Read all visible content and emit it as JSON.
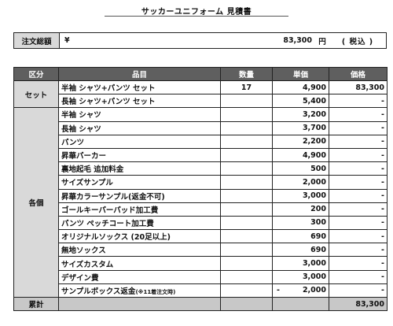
{
  "title": "サッカーユニフォーム 見積書",
  "total": {
    "label": "注文総額",
    "yen": "¥",
    "value": "83,300",
    "unit": "円",
    "tax": "( 税込 )"
  },
  "table": {
    "headers": [
      "区分",
      "品目",
      "数量",
      "単価",
      "価格"
    ],
    "groups": [
      {
        "category": "セット",
        "rows": [
          {
            "name": "半袖 シャツ+パンツ セット",
            "qty": "17",
            "unit_price": "4,900",
            "price": "83,300"
          },
          {
            "name": "長袖 シャツ+パンツ セット",
            "qty": "",
            "unit_price": "5,400",
            "price": "-"
          }
        ]
      },
      {
        "category": "各個",
        "rows": [
          {
            "name": "半袖 シャツ",
            "qty": "",
            "unit_price": "3,200",
            "price": "-"
          },
          {
            "name": "長袖 シャツ",
            "qty": "",
            "unit_price": "3,700",
            "price": "-"
          },
          {
            "name": "パンツ",
            "qty": "",
            "unit_price": "2,200",
            "price": "-"
          },
          {
            "name": "昇華パーカー",
            "qty": "",
            "unit_price": "4,900",
            "price": "-"
          },
          {
            "name": "裏地起毛 追加料金",
            "qty": "",
            "unit_price": "500",
            "price": "-"
          },
          {
            "name": "サイズサンプル",
            "qty": "",
            "unit_price": "2,000",
            "price": "-"
          },
          {
            "name": "昇華カラーサンプル(返金不可)",
            "qty": "",
            "unit_price": "3,000",
            "price": "-"
          },
          {
            "name": "ゴールキーパーパッド加工費",
            "qty": "",
            "unit_price": "200",
            "price": "-"
          },
          {
            "name": "パンツ ペッチコート加工費",
            "qty": "",
            "unit_price": "300",
            "price": "-"
          },
          {
            "name": "オリジナルソックス (20足以上)",
            "qty": "",
            "unit_price": "690",
            "price": "-"
          },
          {
            "name": "無地ソックス",
            "qty": "",
            "unit_price": "690",
            "price": "-"
          },
          {
            "name": "サイズカスタム",
            "qty": "",
            "unit_price": "3,000",
            "price": "-"
          },
          {
            "name": "デザイン費",
            "qty": "",
            "unit_price": "3,000",
            "price": "-"
          },
          {
            "name": "サンプルボックス返金",
            "note": "(※11着注文時)",
            "qty": "",
            "unit_price_sign": "-",
            "unit_price": "2,000",
            "price": "-"
          }
        ]
      }
    ],
    "footer": {
      "label": "累計",
      "total": "83,300"
    }
  }
}
